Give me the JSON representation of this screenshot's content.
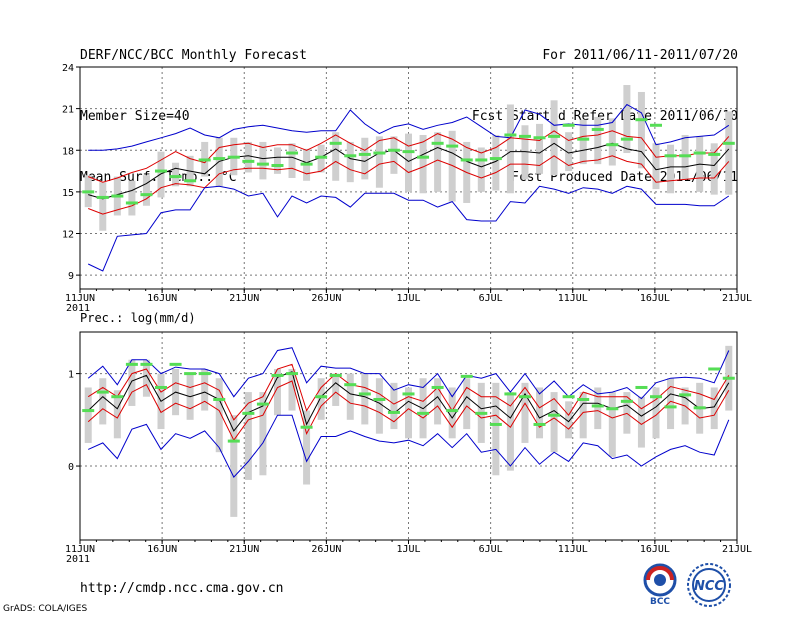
{
  "header": {
    "line1_left": "DERF/NCC/BCC Monthly Forecast",
    "line2_left": "Member Size=40",
    "line3_left": "Mean Surf. Temp.: °C",
    "line1_right": "For 2011/06/11-2011/07/20",
    "line2_right": "Fcst Started Refer Date 2011/06/10",
    "line3_right": "Fcst Produced Date 2011/06/11"
  },
  "footer": {
    "url": "http://cmdp.ncc.cma.gov.cn",
    "credit": "GrADS: COLA/IGES"
  },
  "logos": {
    "bcc_text": "BCC",
    "ncc_text": "NCC"
  },
  "colors": {
    "max_min": "#0000cc",
    "spread": "#dd0000",
    "mean": "#000000",
    "box": "#cfcfcf",
    "median": "#55dd55",
    "grid": "#777777"
  },
  "chart_data": [
    {
      "type": "line",
      "title": "Mean Surf. Temp.: °C",
      "x_tick_labels": [
        "11JUN",
        "16JUN",
        "21JUN",
        "26JUN",
        "1JUL",
        "6JUL",
        "11JUL",
        "16JUL",
        "21JUL"
      ],
      "x_year_label": "2011",
      "x_range": [
        0,
        40
      ],
      "ylim": [
        8,
        24
      ],
      "y_ticks": [
        9,
        12,
        15,
        18,
        21,
        24
      ],
      "series": [
        {
          "name": "max",
          "values": [
            18.0,
            18.0,
            18.1,
            18.3,
            18.6,
            18.9,
            19.2,
            19.6,
            19.1,
            18.9,
            19.5,
            19.7,
            19.8,
            19.6,
            19.4,
            19.3,
            19.4,
            19.4,
            20.9,
            19.9,
            19.2,
            19.7,
            19.9,
            19.5,
            19.8,
            20.0,
            20.4,
            19.7,
            19.0,
            18.9,
            20.9,
            20.6,
            19.8,
            19.9,
            19.8,
            19.8,
            20.0,
            21.3,
            20.7,
            18.4,
            18.6,
            18.9,
            19.0,
            19.1,
            19.8
          ]
        },
        {
          "name": "upper",
          "values": [
            16.1,
            15.7,
            16.0,
            16.4,
            16.7,
            17.3,
            17.9,
            17.4,
            17.1,
            18.2,
            18.4,
            18.5,
            18.2,
            18.4,
            18.4,
            18.0,
            18.5,
            19.1,
            18.5,
            18.0,
            18.7,
            18.9,
            18.3,
            18.6,
            19.2,
            18.8,
            18.2,
            17.8,
            18.2,
            18.9,
            18.8,
            18.7,
            19.4,
            18.7,
            19.0,
            19.1,
            19.4,
            19.0,
            18.9,
            17.5,
            17.6,
            17.6,
            17.8,
            17.8,
            19.0
          ]
        },
        {
          "name": "mean",
          "values": [
            14.8,
            14.5,
            14.8,
            15.1,
            15.6,
            16.3,
            16.7,
            16.5,
            16.3,
            17.2,
            17.5,
            17.6,
            17.4,
            17.5,
            17.5,
            17.1,
            17.5,
            18.1,
            17.4,
            17.2,
            17.8,
            18.0,
            17.2,
            17.7,
            18.2,
            17.8,
            17.2,
            16.8,
            17.2,
            17.9,
            17.9,
            17.8,
            18.5,
            17.8,
            18.0,
            18.2,
            18.5,
            18.1,
            17.9,
            16.6,
            16.8,
            16.8,
            17.0,
            16.9,
            18.1
          ]
        },
        {
          "name": "lower",
          "values": [
            13.8,
            13.4,
            13.7,
            14.0,
            14.5,
            15.3,
            15.6,
            15.5,
            15.3,
            16.3,
            16.6,
            16.7,
            16.7,
            16.6,
            16.7,
            16.3,
            16.5,
            17.2,
            16.6,
            16.3,
            17.0,
            17.2,
            16.4,
            16.8,
            17.3,
            16.9,
            16.4,
            16.0,
            16.4,
            17.0,
            17.0,
            16.9,
            17.6,
            16.9,
            17.2,
            17.3,
            17.6,
            17.2,
            17.0,
            15.7,
            15.8,
            15.9,
            16.0,
            16.0,
            17.2
          ]
        },
        {
          "name": "min",
          "values": [
            9.8,
            9.3,
            11.8,
            11.9,
            12.0,
            13.5,
            13.7,
            13.7,
            15.3,
            15.4,
            15.2,
            14.7,
            14.9,
            13.2,
            14.7,
            14.2,
            14.7,
            14.6,
            13.9,
            14.9,
            14.9,
            14.9,
            14.4,
            14.4,
            13.9,
            14.3,
            13.0,
            12.9,
            12.9,
            14.3,
            14.2,
            15.4,
            15.2,
            14.9,
            15.3,
            15.2,
            14.9,
            15.4,
            15.2,
            14.1,
            14.1,
            14.1,
            14.0,
            14.0,
            14.7
          ]
        }
      ],
      "boxes": {
        "top": [
          16.2,
          15.7,
          16.1,
          15.8,
          16.2,
          17.9,
          17.1,
          17.6,
          18.6,
          18.9,
          18.9,
          18.6,
          18.6,
          18.2,
          18.5,
          18.1,
          18.4,
          19.3,
          18.6,
          18.9,
          19.0,
          19.0,
          19.2,
          19.1,
          19.3,
          19.4,
          18.6,
          18.2,
          19.1,
          21.3,
          19.8,
          19.9,
          21.6,
          19.3,
          20.2,
          20.4,
          20.3,
          22.7,
          22.2,
          18.5,
          18.4,
          19.1,
          19.0,
          18.5,
          20.8
        ],
        "bottom": [
          13.9,
          12.2,
          13.3,
          13.3,
          14.0,
          14.6,
          15.4,
          15.4,
          16.1,
          15.4,
          16.2,
          16.4,
          15.9,
          16.3,
          16.0,
          15.8,
          16.4,
          15.8,
          15.7,
          15.9,
          15.3,
          16.3,
          15.0,
          14.9,
          15.0,
          14.3,
          14.2,
          15.0,
          15.1,
          14.9,
          15.9,
          16.3,
          16.2,
          16.5,
          17.0,
          17.0,
          16.9,
          17.8,
          16.7,
          15.2,
          14.9,
          15.9,
          15.0,
          14.8,
          14.8
        ]
      },
      "medians": [
        15.0,
        14.6,
        14.7,
        14.2,
        14.8,
        16.5,
        16.1,
        15.8,
        17.3,
        17.4,
        17.5,
        17.2,
        17.0,
        16.9,
        17.8,
        17.0,
        17.5,
        18.5,
        17.6,
        17.7,
        17.8,
        18.0,
        17.9,
        17.5,
        18.5,
        18.3,
        17.3,
        17.3,
        17.4,
        19.1,
        19.0,
        18.9,
        19.0,
        19.8,
        18.8,
        19.5,
        18.4,
        18.8,
        20.2,
        19.8,
        17.6,
        17.6,
        17.8,
        17.7,
        18.5
      ]
    },
    {
      "type": "line",
      "title": "Prec.: log(mm/d)",
      "x_tick_labels": [
        "11JUN",
        "16JUN",
        "21JUN",
        "26JUN",
        "1JUL",
        "6JUL",
        "11JUL",
        "16JUL",
        "21JUL"
      ],
      "x_year_label": "2011",
      "x_range": [
        0,
        40
      ],
      "ylim": [
        -0.8,
        1.45
      ],
      "y_ticks": [
        0,
        1
      ],
      "series": [
        {
          "name": "max",
          "values": [
            0.95,
            1.08,
            0.88,
            1.15,
            1.15,
            1.0,
            1.07,
            1.05,
            1.05,
            1.0,
            0.75,
            0.95,
            1.0,
            1.25,
            1.28,
            0.9,
            1.08,
            1.06,
            1.06,
            1.0,
            1.0,
            0.82,
            0.88,
            0.85,
            1.0,
            0.75,
            0.98,
            0.95,
            1.0,
            0.8,
            1.0,
            0.78,
            0.92,
            0.75,
            0.88,
            0.78,
            0.8,
            0.85,
            0.73,
            0.9,
            0.95,
            0.96,
            0.95,
            0.9,
            1.25
          ]
        },
        {
          "name": "upper",
          "values": [
            0.75,
            0.85,
            0.75,
            1.0,
            1.05,
            0.8,
            0.9,
            0.85,
            0.9,
            0.82,
            0.5,
            0.68,
            0.75,
            1.05,
            1.1,
            0.6,
            0.85,
            1.0,
            0.88,
            0.85,
            0.78,
            0.67,
            0.75,
            0.7,
            0.85,
            0.6,
            0.85,
            0.75,
            0.75,
            0.65,
            0.85,
            0.63,
            0.73,
            0.55,
            0.8,
            0.75,
            0.75,
            0.75,
            0.62,
            0.72,
            0.86,
            0.82,
            0.78,
            0.72,
            0.98
          ]
        },
        {
          "name": "mean",
          "values": [
            0.6,
            0.75,
            0.62,
            0.92,
            0.98,
            0.7,
            0.8,
            0.75,
            0.8,
            0.72,
            0.38,
            0.58,
            0.65,
            0.96,
            1.02,
            0.45,
            0.75,
            0.9,
            0.78,
            0.75,
            0.68,
            0.57,
            0.7,
            0.62,
            0.75,
            0.52,
            0.75,
            0.62,
            0.65,
            0.52,
            0.78,
            0.52,
            0.6,
            0.48,
            0.68,
            0.68,
            0.62,
            0.66,
            0.54,
            0.64,
            0.78,
            0.74,
            0.62,
            0.64,
            0.9
          ]
        },
        {
          "name": "lower",
          "values": [
            0.48,
            0.62,
            0.52,
            0.8,
            0.88,
            0.58,
            0.68,
            0.62,
            0.7,
            0.6,
            0.28,
            0.5,
            0.55,
            0.85,
            0.92,
            0.35,
            0.65,
            0.8,
            0.68,
            0.65,
            0.58,
            0.48,
            0.62,
            0.52,
            0.65,
            0.42,
            0.65,
            0.52,
            0.55,
            0.42,
            0.68,
            0.42,
            0.52,
            0.4,
            0.58,
            0.6,
            0.52,
            0.57,
            0.45,
            0.55,
            0.7,
            0.65,
            0.52,
            0.55,
            0.82
          ]
        },
        {
          "name": "min",
          "values": [
            0.18,
            0.25,
            0.08,
            0.4,
            0.45,
            0.18,
            0.35,
            0.3,
            0.38,
            0.2,
            -0.12,
            0.05,
            0.25,
            0.55,
            0.55,
            0.05,
            0.32,
            0.32,
            0.38,
            0.32,
            0.27,
            0.25,
            0.28,
            0.22,
            0.35,
            0.2,
            0.35,
            0.15,
            0.18,
            0.0,
            0.2,
            0.02,
            0.15,
            0.05,
            0.25,
            0.22,
            0.08,
            0.12,
            0.0,
            0.1,
            0.18,
            0.22,
            0.15,
            0.12,
            0.5
          ]
        },
        {
          "name": "hi_bound",
          "values": [
            0.2,
            0.28,
            0.1,
            0.43,
            0.48,
            0.2,
            0.38,
            0.33,
            0.4,
            0.22,
            -0.1,
            0.08,
            0.28,
            0.58,
            0.58,
            0.08,
            0.35,
            0.35,
            0.4,
            0.35,
            0.3,
            0.28,
            0.3,
            0.25,
            0.38,
            0.22,
            0.38,
            0.18,
            0.2,
            0.03,
            0.23,
            0.05,
            0.18,
            0.08,
            0.28,
            0.25,
            0.1,
            0.15,
            0.03,
            0.13,
            0.2,
            0.25,
            0.18,
            0.15,
            0.53
          ]
        }
      ],
      "boxes": {
        "top": [
          0.85,
          0.95,
          0.82,
          1.15,
          1.15,
          1.0,
          1.05,
          1.0,
          1.05,
          0.95,
          0.55,
          0.8,
          0.8,
          1.05,
          1.05,
          0.6,
          0.95,
          1.0,
          1.0,
          1.0,
          0.95,
          0.9,
          0.85,
          0.95,
          0.95,
          0.85,
          0.95,
          0.9,
          0.9,
          0.8,
          0.9,
          0.85,
          0.8,
          0.7,
          0.8,
          0.85,
          0.8,
          0.8,
          0.75,
          0.85,
          0.95,
          0.85,
          0.9,
          0.85,
          1.3
        ],
        "bottom": [
          0.25,
          0.45,
          0.3,
          0.65,
          0.75,
          0.4,
          0.55,
          0.5,
          0.6,
          0.15,
          -0.55,
          -0.15,
          -0.1,
          0.55,
          0.6,
          -0.2,
          0.5,
          0.65,
          0.5,
          0.45,
          0.35,
          0.4,
          0.3,
          0.3,
          0.45,
          0.3,
          0.4,
          0.25,
          -0.1,
          -0.05,
          0.25,
          0.3,
          0.15,
          0.3,
          0.3,
          0.4,
          0.1,
          0.35,
          0.2,
          0.3,
          0.4,
          0.45,
          0.35,
          0.4,
          0.6
        ]
      },
      "medians": [
        0.6,
        0.8,
        0.75,
        1.1,
        1.1,
        0.85,
        1.1,
        1.0,
        1.0,
        0.72,
        0.27,
        0.57,
        0.67,
        0.98,
        1.0,
        0.42,
        0.75,
        0.98,
        0.88,
        0.78,
        0.72,
        0.58,
        0.78,
        0.57,
        0.85,
        0.6,
        0.97,
        0.57,
        0.45,
        0.78,
        0.75,
        0.45,
        0.55,
        0.75,
        0.72,
        0.65,
        0.62,
        0.7,
        0.85,
        0.75,
        0.64,
        0.77,
        0.63,
        1.05,
        0.95
      ]
    }
  ]
}
